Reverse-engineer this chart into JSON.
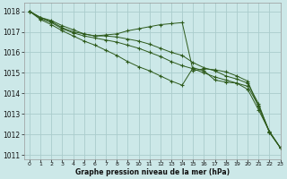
{
  "title": "Graphe pression niveau de la mer (hPa)",
  "background_color": "#cce8e8",
  "grid_color": "#aacccc",
  "line_color": "#2d5a1b",
  "xlim": [
    -0.5,
    23
  ],
  "ylim": [
    1010.8,
    1018.4
  ],
  "yticks": [
    1011,
    1012,
    1013,
    1014,
    1015,
    1016,
    1017,
    1018
  ],
  "xticks": [
    0,
    1,
    2,
    3,
    4,
    5,
    6,
    7,
    8,
    9,
    10,
    11,
    12,
    13,
    14,
    15,
    16,
    17,
    18,
    19,
    20,
    21,
    22,
    23
  ],
  "s1": [
    1018.0,
    1017.7,
    1017.55,
    1017.3,
    1017.1,
    1016.9,
    1016.8,
    1016.85,
    1016.9,
    1017.05,
    1017.15,
    1017.25,
    1017.35,
    1017.4,
    1017.45,
    1015.1,
    1015.2,
    1015.15,
    1015.05,
    1014.85,
    1014.6,
    1013.35,
    1012.1,
    1011.35
  ],
  "s2": [
    1018.0,
    1017.7,
    1017.5,
    1017.2,
    1017.0,
    1016.9,
    1016.8,
    1016.8,
    1016.75,
    1016.65,
    1016.55,
    1016.4,
    1016.2,
    1016.0,
    1015.85,
    1015.5,
    1015.25,
    1015.1,
    1014.85,
    1014.7,
    1014.5,
    1013.5,
    1012.1,
    1011.35
  ],
  "s3": [
    1018.0,
    1017.65,
    1017.45,
    1017.15,
    1016.95,
    1016.8,
    1016.7,
    1016.6,
    1016.5,
    1016.35,
    1016.2,
    1016.0,
    1015.8,
    1015.55,
    1015.35,
    1015.2,
    1015.0,
    1014.8,
    1014.65,
    1014.5,
    1014.35,
    1013.4,
    1012.15,
    1011.35
  ],
  "s4": [
    1018.0,
    1017.6,
    1017.35,
    1017.05,
    1016.8,
    1016.55,
    1016.35,
    1016.1,
    1015.85,
    1015.55,
    1015.3,
    1015.1,
    1014.85,
    1014.6,
    1014.4,
    1015.25,
    1015.1,
    1014.65,
    1014.55,
    1014.5,
    1014.2,
    1013.2,
    1012.15,
    1011.35
  ]
}
